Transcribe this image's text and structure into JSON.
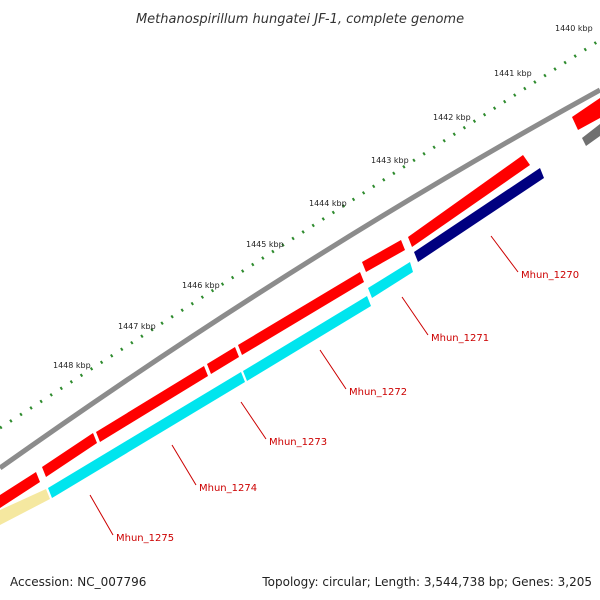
{
  "title": "Methanospirillum hungatei JF-1, complete genome",
  "kbp_labels": [
    "1440 kbp",
    "1441 kbp",
    "1442 kbp",
    "1443 kbp",
    "1444 kbp",
    "1445 kbp",
    "1446 kbp",
    "1447 kbp",
    "1448 kbp"
  ],
  "gene_labels": [
    "Mhun_1270",
    "Mhun_1271",
    "Mhun_1272",
    "Mhun_1273",
    "Mhun_1274",
    "Mhun_1275"
  ],
  "footer": {
    "accession": "Accession: NC_007796",
    "summary": "Topology: circular; Length: 3,544,738 bp; Genes: 3,205"
  },
  "colors": {
    "backbone": "#8c8c8c",
    "forward_gene": "#ff0000",
    "reverse_gene_cyan": "#00e5ee",
    "reverse_gene_navy": "#000080",
    "reverse_gene_yellow": "#f5e8a0",
    "reverse_gene_gray": "#707070",
    "tick": "#2e8b2e",
    "label_line": "#cc0000"
  }
}
